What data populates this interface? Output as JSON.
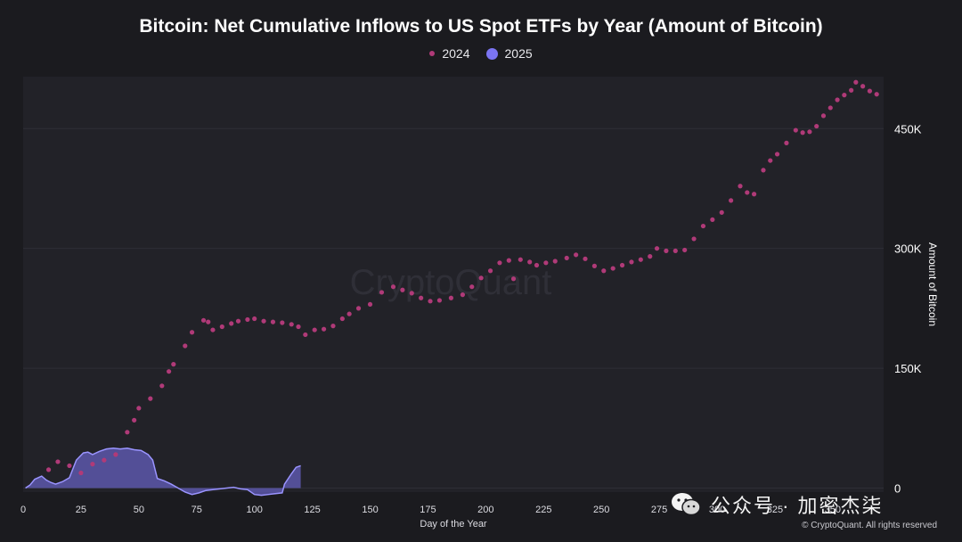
{
  "chart_data": {
    "type": "scatter",
    "title": "Bitcoin: Net Cumulative Inflows to US Spot ETFs by Year (Amount of Bitcoin)",
    "xlabel": "Day of the Year",
    "ylabel": "Amount of Bitcoin",
    "xlim": [
      0,
      372
    ],
    "ylim": [
      -5000,
      515000
    ],
    "x_ticks": [
      0,
      25,
      50,
      75,
      100,
      125,
      150,
      175,
      200,
      225,
      250,
      275,
      300,
      325,
      350
    ],
    "y_ticks": [
      0,
      150000,
      300000,
      450000
    ],
    "y_tick_labels": [
      "0",
      "150K",
      "300K",
      "450K"
    ],
    "y_axis_position": "right",
    "grid": "horizontal",
    "legend_position": "top-center",
    "watermark": "CryptoQuant",
    "series": [
      {
        "name": "2024",
        "style": "dots",
        "color": "#b03a78",
        "points": [
          [
            11,
            23000
          ],
          [
            15,
            33000
          ],
          [
            20,
            28000
          ],
          [
            25,
            19000
          ],
          [
            30,
            30000
          ],
          [
            35,
            35000
          ],
          [
            40,
            42000
          ],
          [
            45,
            70000
          ],
          [
            48,
            85000
          ],
          [
            50,
            100000
          ],
          [
            55,
            112000
          ],
          [
            60,
            128000
          ],
          [
            63,
            146000
          ],
          [
            65,
            155000
          ],
          [
            70,
            178000
          ],
          [
            73,
            195000
          ],
          [
            78,
            210000
          ],
          [
            80,
            208000
          ],
          [
            82,
            198000
          ],
          [
            86,
            202000
          ],
          [
            90,
            206000
          ],
          [
            93,
            209000
          ],
          [
            97,
            211000
          ],
          [
            100,
            212000
          ],
          [
            104,
            209000
          ],
          [
            108,
            208000
          ],
          [
            112,
            207000
          ],
          [
            116,
            205000
          ],
          [
            119,
            202000
          ],
          [
            122,
            192000
          ],
          [
            126,
            198000
          ],
          [
            130,
            199000
          ],
          [
            134,
            203000
          ],
          [
            138,
            212000
          ],
          [
            141,
            218000
          ],
          [
            145,
            225000
          ],
          [
            150,
            230000
          ],
          [
            155,
            245000
          ],
          [
            160,
            252000
          ],
          [
            164,
            248000
          ],
          [
            168,
            244000
          ],
          [
            172,
            238000
          ],
          [
            176,
            234000
          ],
          [
            180,
            235000
          ],
          [
            185,
            238000
          ],
          [
            190,
            242000
          ],
          [
            194,
            252000
          ],
          [
            198,
            263000
          ],
          [
            202,
            272000
          ],
          [
            206,
            282000
          ],
          [
            210,
            285000
          ],
          [
            212,
            262000
          ],
          [
            215,
            286000
          ],
          [
            219,
            283000
          ],
          [
            222,
            279000
          ],
          [
            226,
            282000
          ],
          [
            230,
            284000
          ],
          [
            235,
            288000
          ],
          [
            239,
            292000
          ],
          [
            243,
            287000
          ],
          [
            247,
            278000
          ],
          [
            251,
            272000
          ],
          [
            255,
            275000
          ],
          [
            259,
            279000
          ],
          [
            263,
            283000
          ],
          [
            267,
            286000
          ],
          [
            271,
            290000
          ],
          [
            274,
            300000
          ],
          [
            278,
            297000
          ],
          [
            282,
            297000
          ],
          [
            286,
            298000
          ],
          [
            290,
            312000
          ],
          [
            294,
            328000
          ],
          [
            298,
            336000
          ],
          [
            302,
            345000
          ],
          [
            306,
            360000
          ],
          [
            310,
            378000
          ],
          [
            313,
            370000
          ],
          [
            316,
            368000
          ],
          [
            320,
            398000
          ],
          [
            323,
            410000
          ],
          [
            326,
            418000
          ],
          [
            330,
            432000
          ],
          [
            334,
            448000
          ],
          [
            337,
            445000
          ],
          [
            340,
            446000
          ],
          [
            343,
            453000
          ],
          [
            346,
            466000
          ],
          [
            349,
            476000
          ],
          [
            352,
            486000
          ],
          [
            355,
            492000
          ],
          [
            358,
            498000
          ],
          [
            360,
            508000
          ],
          [
            363,
            503000
          ],
          [
            366,
            497000
          ],
          [
            369,
            493000
          ]
        ]
      },
      {
        "name": "2025",
        "style": "area",
        "color": "#7b74f2",
        "points": [
          [
            1,
            0
          ],
          [
            3,
            4000
          ],
          [
            5,
            11000
          ],
          [
            8,
            15000
          ],
          [
            10,
            10000
          ],
          [
            12,
            7000
          ],
          [
            14,
            5000
          ],
          [
            17,
            8000
          ],
          [
            20,
            13000
          ],
          [
            23,
            35000
          ],
          [
            26,
            44000
          ],
          [
            28,
            45000
          ],
          [
            30,
            42000
          ],
          [
            33,
            46000
          ],
          [
            36,
            49000
          ],
          [
            39,
            50000
          ],
          [
            42,
            49000
          ],
          [
            45,
            50000
          ],
          [
            48,
            48000
          ],
          [
            51,
            47000
          ],
          [
            54,
            42000
          ],
          [
            56,
            35000
          ],
          [
            58,
            12000
          ],
          [
            61,
            9000
          ],
          [
            64,
            5000
          ],
          [
            67,
            0
          ],
          [
            70,
            -5000
          ],
          [
            73,
            -8000
          ],
          [
            76,
            -6000
          ],
          [
            79,
            -3000
          ],
          [
            82,
            -2000
          ],
          [
            85,
            -1000
          ],
          [
            88,
            0
          ],
          [
            91,
            1000
          ],
          [
            94,
            -1000
          ],
          [
            97,
            -2000
          ],
          [
            100,
            -8000
          ],
          [
            103,
            -9000
          ],
          [
            106,
            -8000
          ],
          [
            109,
            -7000
          ],
          [
            112,
            -6000
          ],
          [
            113,
            5000
          ],
          [
            116,
            18000
          ],
          [
            118,
            26000
          ],
          [
            120,
            28000
          ]
        ]
      }
    ]
  },
  "legend": {
    "items": [
      {
        "label": "2024",
        "color": "#b03a78"
      },
      {
        "label": "2025",
        "color": "#7b74f2"
      }
    ]
  },
  "overlay": {
    "wechat_label": "公众号 · 加密杰柒",
    "copyright": "© CryptoQuant. All rights reserved"
  },
  "colors": {
    "background": "#1b1b1f",
    "plot_background": "#222228",
    "grid": "#2e2e36",
    "axis_text": "#dcdce2"
  }
}
